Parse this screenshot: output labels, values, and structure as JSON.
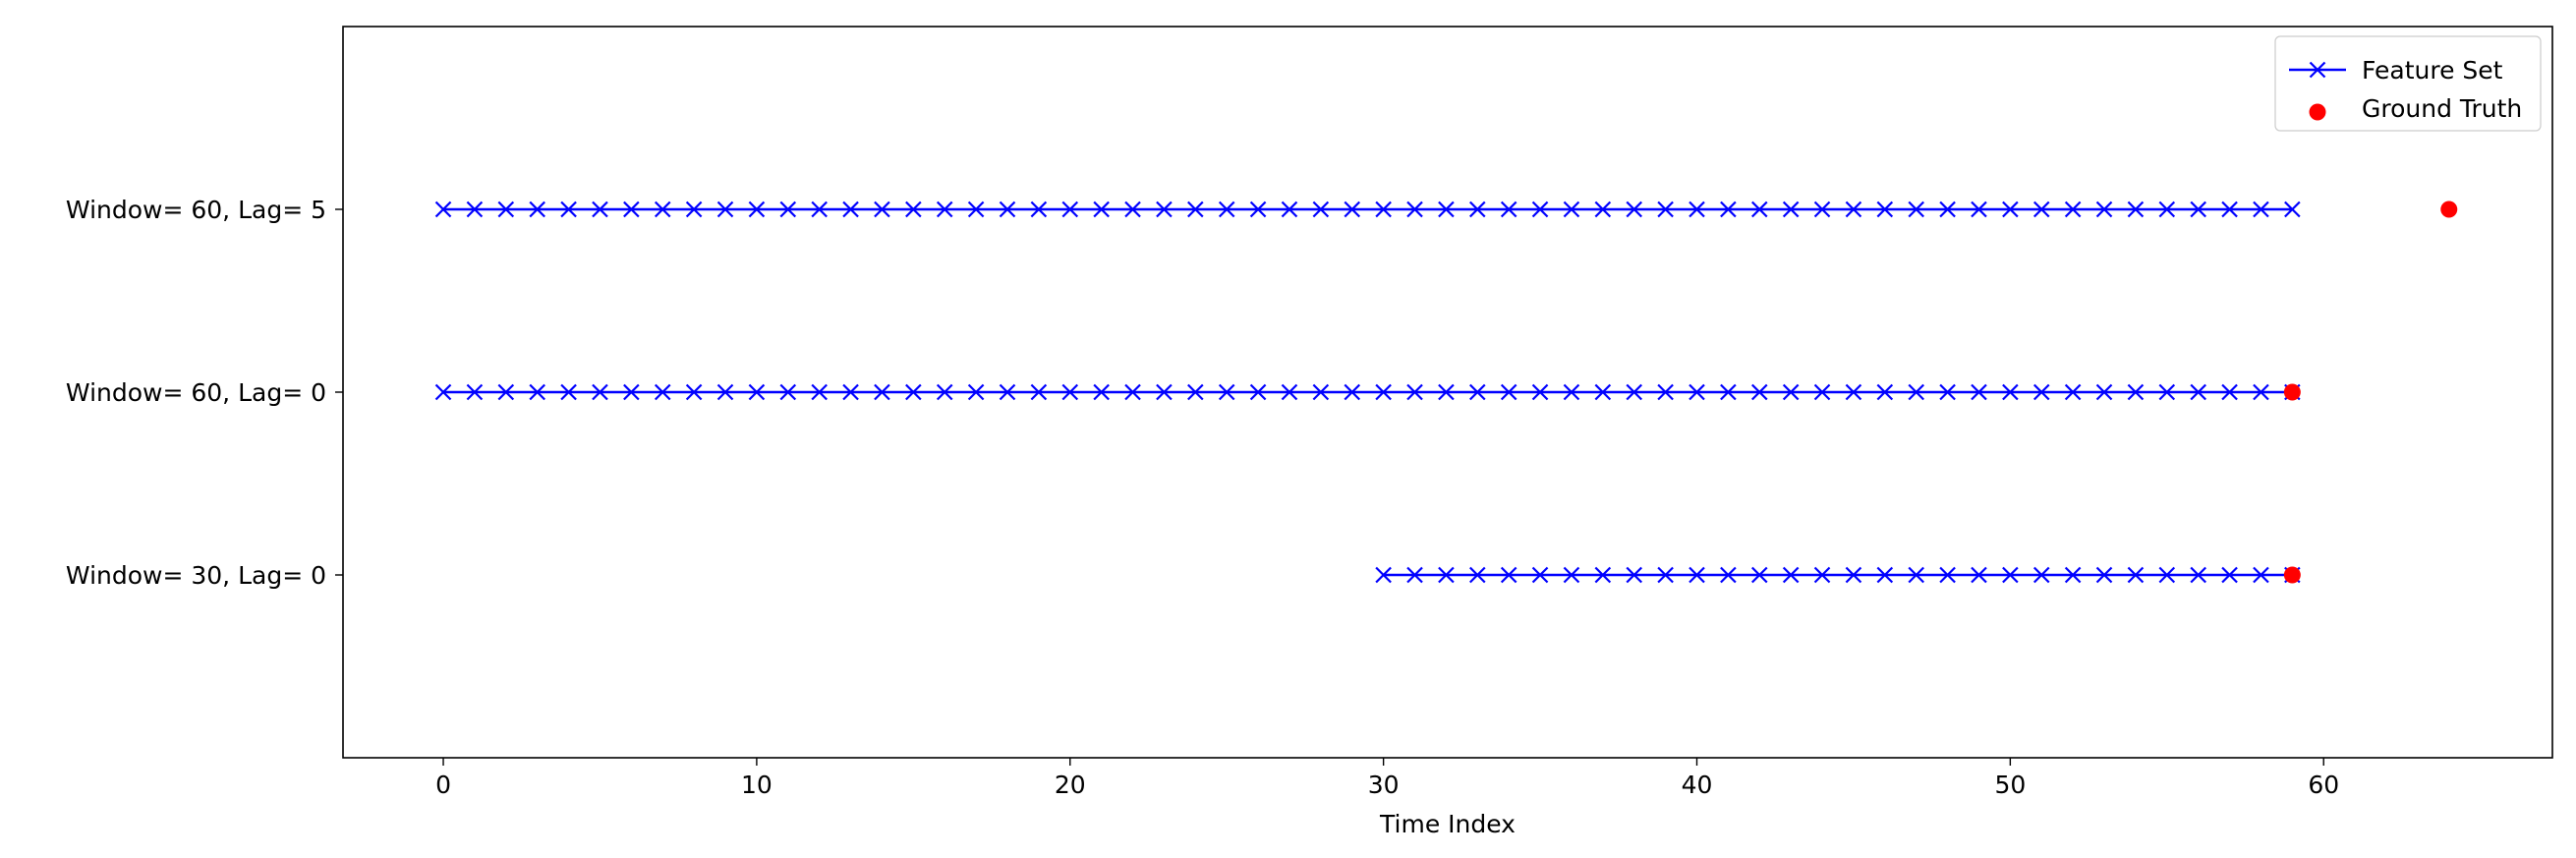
{
  "chart_data": {
    "type": "line",
    "title": "",
    "xlabel": "Time Index",
    "ylabel": "",
    "xlim": [
      -3.2,
      67.3
    ],
    "xticks": [
      0,
      10,
      20,
      30,
      40,
      50,
      60
    ],
    "ylim": [
      -1.0,
      3.0
    ],
    "categories": [
      "Window= 30, Lag= 0",
      "Window= 60, Lag= 0",
      "Window= 60, Lag= 5"
    ],
    "grid": false,
    "legend": {
      "position": "top-right",
      "entries": [
        "Feature Set",
        "Ground Truth"
      ]
    },
    "series": [
      {
        "name": "Feature Set",
        "marker": "x",
        "color": "#0000ff",
        "rows": [
          {
            "category": "Window= 60, Lag= 5",
            "x_start": 0,
            "x_end": 59
          },
          {
            "category": "Window= 60, Lag= 0",
            "x_start": 0,
            "x_end": 59
          },
          {
            "category": "Window= 30, Lag= 0",
            "x_start": 30,
            "x_end": 59
          }
        ]
      },
      {
        "name": "Ground Truth",
        "marker": "o",
        "color": "#ff0000",
        "points": [
          {
            "category": "Window= 60, Lag= 5",
            "x": 64
          },
          {
            "category": "Window= 60, Lag= 0",
            "x": 59
          },
          {
            "category": "Window= 30, Lag= 0",
            "x": 59
          }
        ]
      }
    ]
  }
}
